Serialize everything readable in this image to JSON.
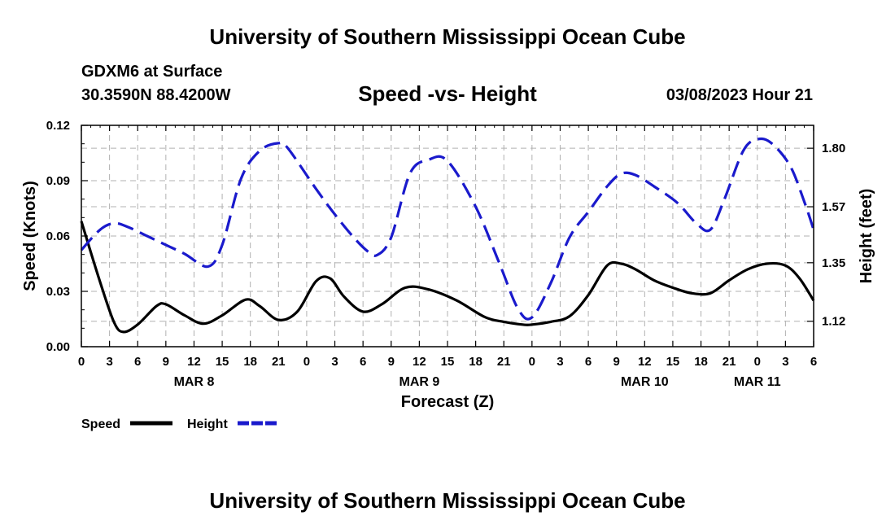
{
  "header": {
    "title": "University of Southern Mississippi Ocean Cube",
    "station": "GDXM6 at Surface",
    "coordinates": "30.3590N  88.4200W",
    "subtitle": "Speed -vs- Height",
    "datetime": "03/08/2023 Hour 21"
  },
  "footer": {
    "title": "University of Southern Mississippi Ocean Cube"
  },
  "colors": {
    "speed": "#000000",
    "height": "#1a1acc",
    "grid": "#b0b0b0"
  },
  "chart_data": {
    "type": "line",
    "title": "Speed -vs- Height",
    "xlabel": "Forecast (Z)",
    "ylabel": "Speed (Knots)",
    "y2label": "Height (feet)",
    "x_range_hours": [
      0,
      78
    ],
    "ylim": [
      0,
      0.12
    ],
    "y2lim": [
      1.02,
      1.89
    ],
    "yticks": [
      "0.00",
      "0.03",
      "0.06",
      "0.09",
      "0.12"
    ],
    "y2ticks": [
      "1.12",
      "1.35",
      "1.57",
      "1.80"
    ],
    "xtick_labels": [
      "0",
      "3",
      "6",
      "9",
      "12",
      "15",
      "18",
      "21",
      "0",
      "3",
      "6",
      "9",
      "12",
      "15",
      "18",
      "21",
      "0",
      "3",
      "6",
      "9",
      "12",
      "15",
      "18",
      "21",
      "0",
      "3",
      "6"
    ],
    "date_labels": [
      {
        "label": "MAR 8",
        "hour": 12
      },
      {
        "label": "MAR 9",
        "hour": 36
      },
      {
        "label": "MAR 10",
        "hour": 60
      },
      {
        "label": "MAR 11",
        "hour": 72
      }
    ],
    "legend_position": "bottom-left",
    "series": [
      {
        "name": "Speed",
        "axis": "left",
        "style": "solid",
        "x": [
          0,
          2,
          3.5,
          4.5,
          6,
          8,
          9,
          11,
          13,
          15,
          17.5,
          19,
          21,
          23,
          25,
          26.5,
          28,
          30,
          32,
          34.5,
          37,
          40,
          43,
          45,
          47,
          48,
          50,
          52,
          54,
          56,
          57.5,
          59,
          61,
          63,
          65,
          67,
          69,
          71,
          73,
          75,
          76.5,
          78
        ],
        "values": [
          0.068,
          0.035,
          0.013,
          0.008,
          0.012,
          0.022,
          0.023,
          0.017,
          0.0125,
          0.017,
          0.0255,
          0.022,
          0.0145,
          0.019,
          0.0355,
          0.037,
          0.027,
          0.019,
          0.023,
          0.032,
          0.031,
          0.025,
          0.016,
          0.0135,
          0.012,
          0.012,
          0.0135,
          0.0165,
          0.028,
          0.044,
          0.045,
          0.042,
          0.036,
          0.032,
          0.029,
          0.029,
          0.036,
          0.042,
          0.045,
          0.044,
          0.037,
          0.025
        ]
      },
      {
        "name": "Height",
        "axis": "right",
        "style": "dashed",
        "x": [
          0,
          2,
          3.5,
          5,
          7,
          9,
          11,
          13.5,
          15,
          17,
          19,
          21,
          22,
          25,
          27,
          29,
          30.5,
          31.5,
          33,
          35,
          37,
          39,
          42,
          44.5,
          46.5,
          48,
          50,
          52,
          54,
          56,
          57.5,
          59,
          61,
          63.5,
          65.5,
          67,
          68.5,
          70.5,
          72,
          73.5,
          75.5,
          77,
          78
        ],
        "values": [
          1.4,
          1.48,
          1.505,
          1.49,
          1.455,
          1.42,
          1.385,
          1.335,
          1.42,
          1.68,
          1.79,
          1.82,
          1.8,
          1.64,
          1.54,
          1.45,
          1.395,
          1.38,
          1.45,
          1.7,
          1.755,
          1.75,
          1.57,
          1.35,
          1.17,
          1.135,
          1.27,
          1.45,
          1.55,
          1.65,
          1.7,
          1.695,
          1.65,
          1.585,
          1.505,
          1.48,
          1.6,
          1.79,
          1.835,
          1.82,
          1.73,
          1.59,
          1.48
        ]
      }
    ]
  }
}
